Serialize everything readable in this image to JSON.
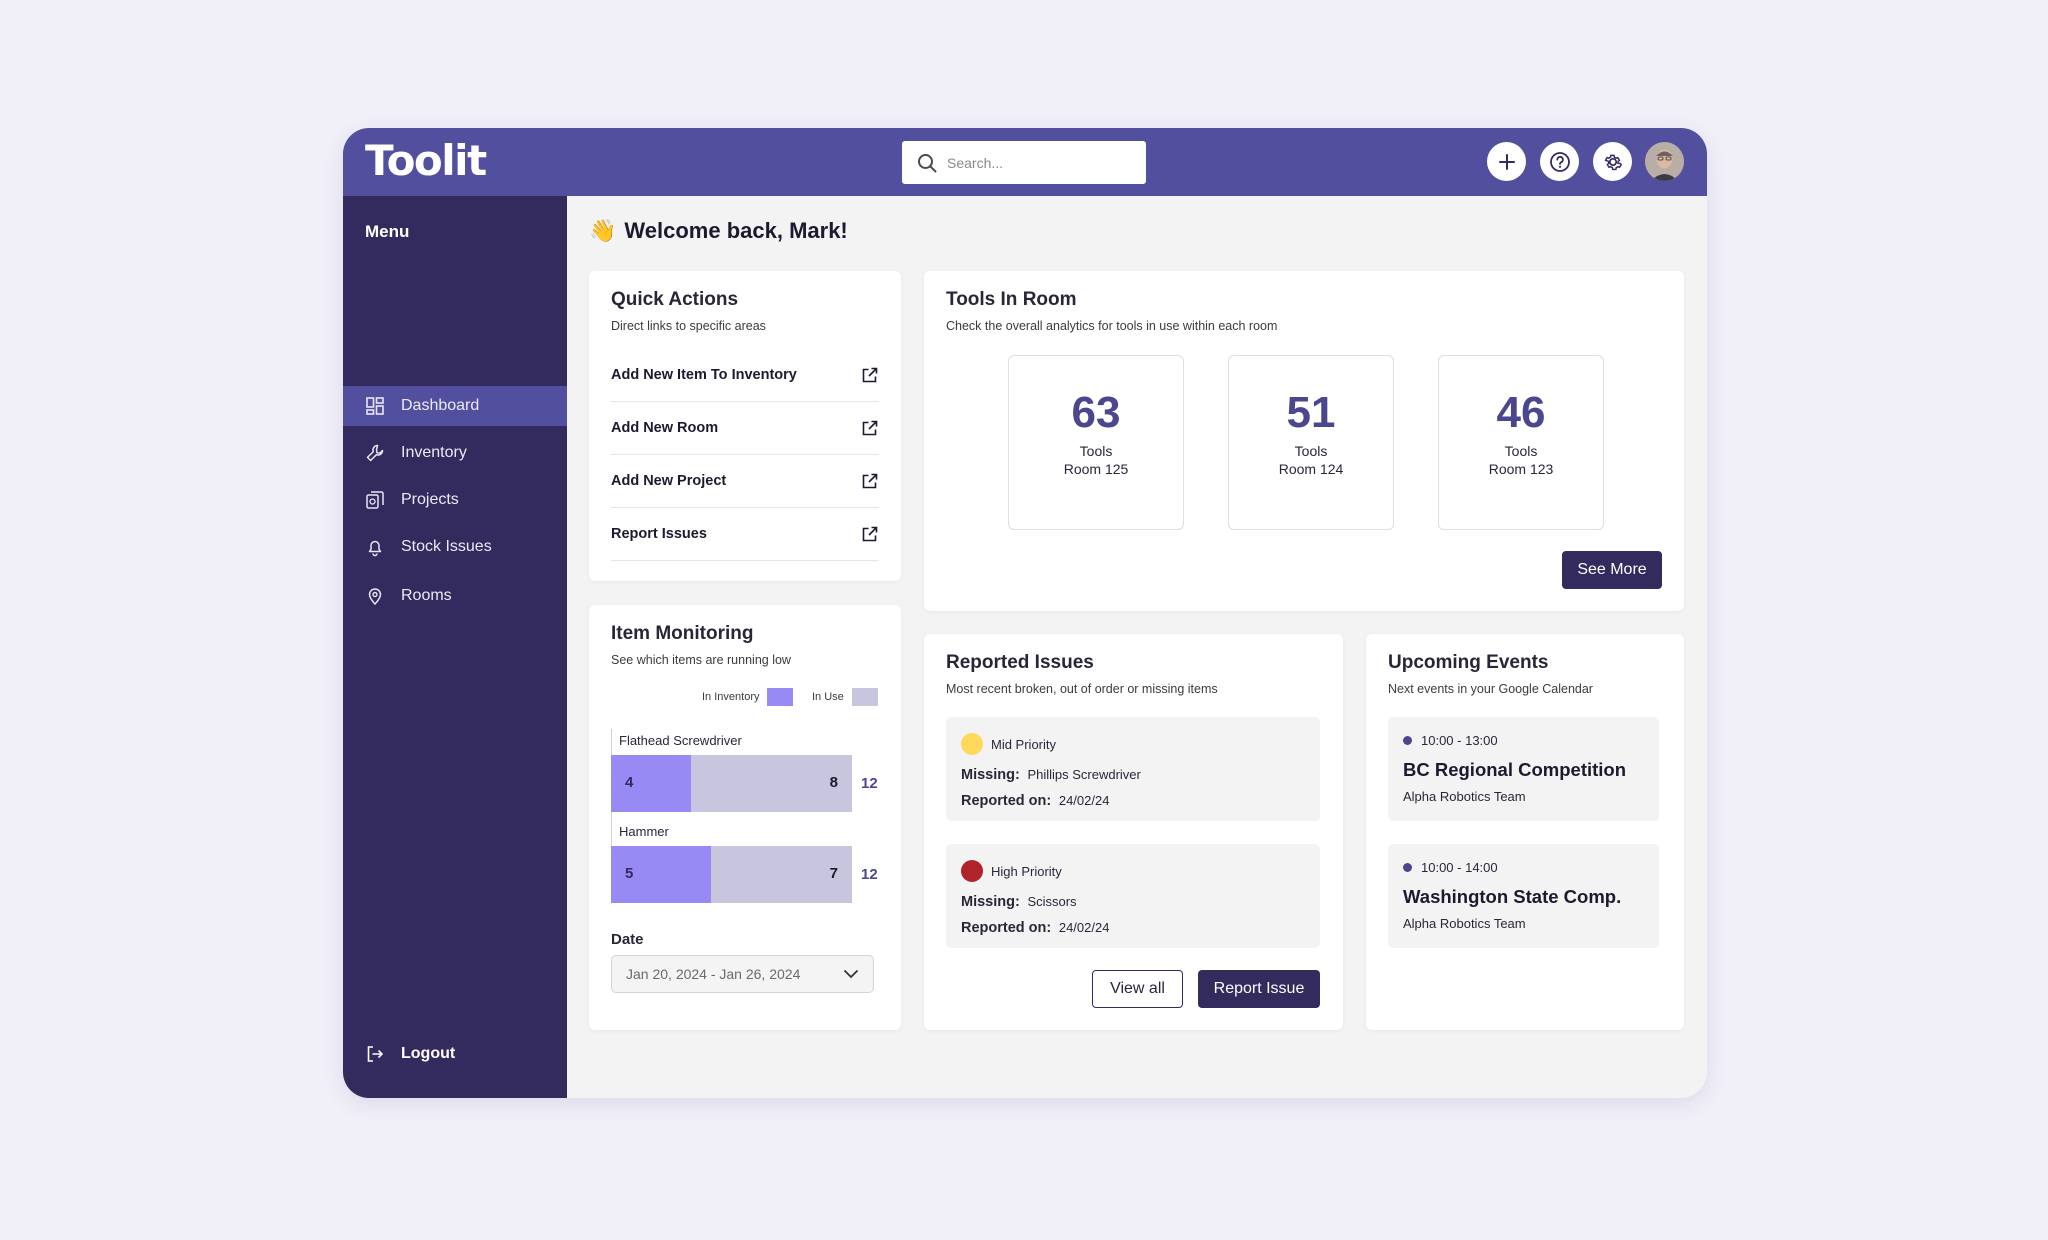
{
  "app": {
    "logo": "Toolit",
    "search_placeholder": "Search..."
  },
  "sidebar": {
    "menu_title": "Menu",
    "items": [
      {
        "label": "Dashboard",
        "icon": "dashboard-icon",
        "active": true
      },
      {
        "label": "Inventory",
        "icon": "wrench-icon",
        "active": false
      },
      {
        "label": "Projects",
        "icon": "projects-icon",
        "active": false
      },
      {
        "label": "Stock Issues",
        "icon": "bell-icon",
        "active": false
      },
      {
        "label": "Rooms",
        "icon": "location-pin-icon",
        "active": false
      }
    ],
    "logout_label": "Logout"
  },
  "welcome": {
    "emoji": "👋",
    "text": "Welcome back, Mark!"
  },
  "quick_actions": {
    "title": "Quick Actions",
    "subtitle": "Direct links to specific areas",
    "items": [
      {
        "label": "Add New Item To Inventory"
      },
      {
        "label": "Add New Room"
      },
      {
        "label": "Add New Project"
      },
      {
        "label": "Report Issues"
      }
    ]
  },
  "tools_in_room": {
    "title": "Tools In Room",
    "subtitle": "Check the overall analytics for tools in use within each room",
    "rooms": [
      {
        "count": "63",
        "unit": "Tools",
        "room": "Room 125"
      },
      {
        "count": "51",
        "unit": "Tools",
        "room": "Room 124"
      },
      {
        "count": "46",
        "unit": "Tools",
        "room": "Room 123"
      }
    ],
    "see_more_label": "See More"
  },
  "item_monitoring": {
    "title": "Item Monitoring",
    "subtitle": "See which items are running low",
    "legend": {
      "in_inventory": "In Inventory",
      "in_use": "In Use"
    },
    "colors": {
      "in_inventory": "#978af5",
      "in_use": "#c8c5de"
    },
    "date_label": "Date",
    "date_value": "Jan 20, 2024 - Jan 26, 2024"
  },
  "chart_data": {
    "type": "bar",
    "stacked": true,
    "orientation": "horizontal",
    "categories": [
      "Flathead Screwdriver",
      "Hammer"
    ],
    "series": [
      {
        "name": "In Inventory",
        "values": [
          4,
          5
        ]
      },
      {
        "name": "In Use",
        "values": [
          8,
          7
        ]
      }
    ],
    "totals": [
      "12",
      "12"
    ]
  },
  "reported_issues": {
    "title": "Reported Issues",
    "subtitle": "Most recent broken, out of order or missing items",
    "missing_label": "Missing:",
    "reported_label": "Reported on:",
    "items": [
      {
        "priority": "Mid Priority",
        "color": "#fdd85a",
        "missing": "Phillips Screwdriver",
        "reported_on": "24/02/24"
      },
      {
        "priority": "High Priority",
        "color": "#b0232a",
        "missing": "Scissors",
        "reported_on": "24/02/24"
      }
    ],
    "view_all_label": "View all",
    "report_label": "Report Issue"
  },
  "upcoming_events": {
    "title": "Upcoming Events",
    "subtitle": "Next events in your Google Calendar",
    "items": [
      {
        "time": "10:00 - 13:00",
        "title": "BC Regional Competition",
        "team": "Alpha Robotics Team"
      },
      {
        "time": "10:00 - 14:00",
        "title": "Washington State Comp.",
        "team": "Alpha Robotics Team"
      }
    ]
  }
}
